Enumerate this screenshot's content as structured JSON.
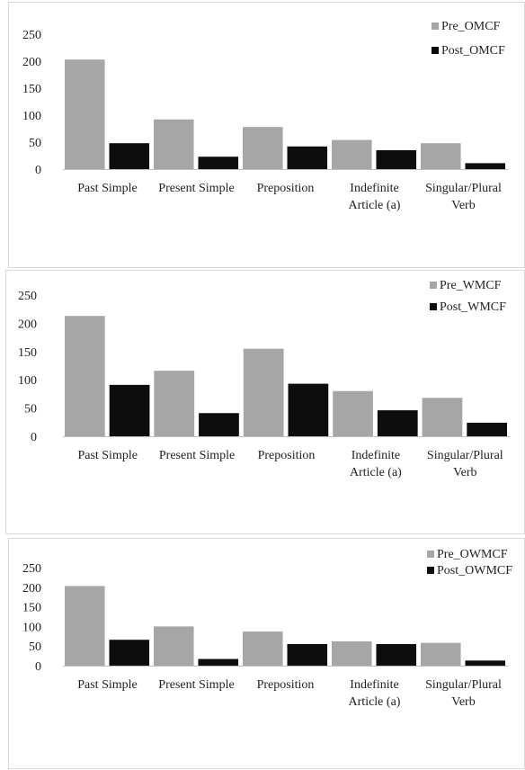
{
  "colors": {
    "pre": "#a6a6a6",
    "post": "#0d0d0d",
    "axis": "#bfbfbf"
  },
  "chart_data": [
    {
      "type": "bar",
      "categories": [
        [
          "Past Simple"
        ],
        [
          "Present Simple"
        ],
        [
          "Preposition"
        ],
        [
          "Indefinite",
          "Article (a)"
        ],
        [
          "Singular/Plural",
          "Verb"
        ]
      ],
      "series": [
        {
          "name": "Pre_OMCF",
          "values": [
            203,
            92,
            78,
            54,
            48
          ]
        },
        {
          "name": "Post_OMCF",
          "values": [
            48,
            23,
            42,
            35,
            11
          ]
        }
      ],
      "ylim": [
        0,
        250
      ],
      "yticks": [
        "0",
        "50",
        "100",
        "150",
        "200",
        "250"
      ],
      "legend": "top-right",
      "grid": false
    },
    {
      "type": "bar",
      "categories": [
        [
          "Past Simple"
        ],
        [
          "Present Simple"
        ],
        [
          "Preposition"
        ],
        [
          "Indefinite",
          "Article (a)"
        ],
        [
          "Singular/Plural",
          "Verb"
        ]
      ],
      "series": [
        {
          "name": "Pre_WMCF",
          "values": [
            213,
            116,
            155,
            80,
            68
          ]
        },
        {
          "name": "Post_WMCF",
          "values": [
            91,
            41,
            93,
            46,
            24
          ]
        }
      ],
      "ylim": [
        0,
        250
      ],
      "yticks": [
        "0",
        "50",
        "100",
        "150",
        "200",
        "250"
      ],
      "legend": "top-right",
      "grid": false
    },
    {
      "type": "bar",
      "categories": [
        [
          "Past Simple"
        ],
        [
          "Present Simple"
        ],
        [
          "Preposition"
        ],
        [
          "Indefinite",
          "Article (a)"
        ],
        [
          "Singular/Plural",
          "Verb"
        ]
      ],
      "series": [
        {
          "name": "Pre_OWMCF",
          "values": [
            203,
            100,
            87,
            62,
            58
          ]
        },
        {
          "name": "Post_OWMCF",
          "values": [
            66,
            17,
            55,
            55,
            13
          ]
        }
      ],
      "ylim": [
        0,
        250
      ],
      "yticks": [
        "0",
        "50",
        "100",
        "150",
        "200",
        "250"
      ],
      "legend": "top-right",
      "grid": false
    }
  ]
}
